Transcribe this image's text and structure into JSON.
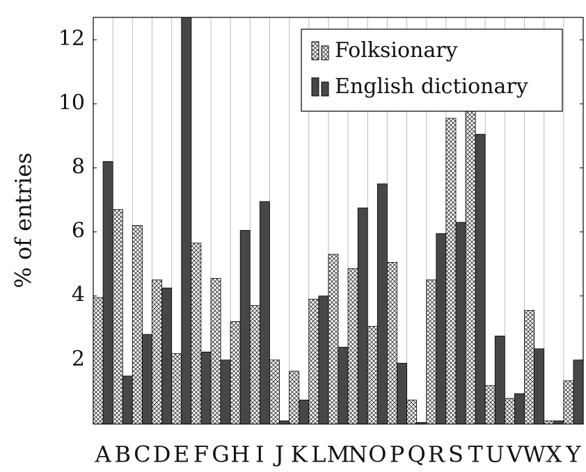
{
  "chart_data": {
    "type": "bar",
    "ylabel": "% of entries",
    "categories": [
      "A",
      "B",
      "C",
      "D",
      "E",
      "F",
      "G",
      "H",
      "I",
      "J",
      "K",
      "L",
      "M",
      "N",
      "O",
      "P",
      "Q",
      "R",
      "S",
      "T",
      "U",
      "V",
      "W",
      "X",
      "Y"
    ],
    "series": [
      {
        "name": "Folksionary",
        "color": "#444444",
        "pattern": "crosshatch",
        "values": [
          3.95,
          6.7,
          6.2,
          4.5,
          2.2,
          5.65,
          4.55,
          3.2,
          3.7,
          2.0,
          1.65,
          3.9,
          5.3,
          4.85,
          3.05,
          5.05,
          0.75,
          4.5,
          9.55,
          9.9,
          1.2,
          0.8,
          3.55,
          0.1,
          1.35
        ]
      },
      {
        "name": "English dictionary",
        "color": "#474747",
        "values": [
          8.2,
          1.5,
          2.8,
          4.25,
          12.7,
          2.25,
          2.0,
          6.05,
          6.95,
          0.1,
          0.75,
          4.0,
          2.4,
          6.75,
          7.5,
          1.9,
          0.05,
          5.95,
          6.3,
          9.05,
          2.75,
          0.95,
          2.35,
          0.1,
          2.0
        ]
      }
    ],
    "ylim": [
      0,
      12.7
    ],
    "yticks": [
      2,
      4,
      6,
      8,
      10,
      12
    ],
    "grid": "x",
    "legend": "upper right"
  }
}
